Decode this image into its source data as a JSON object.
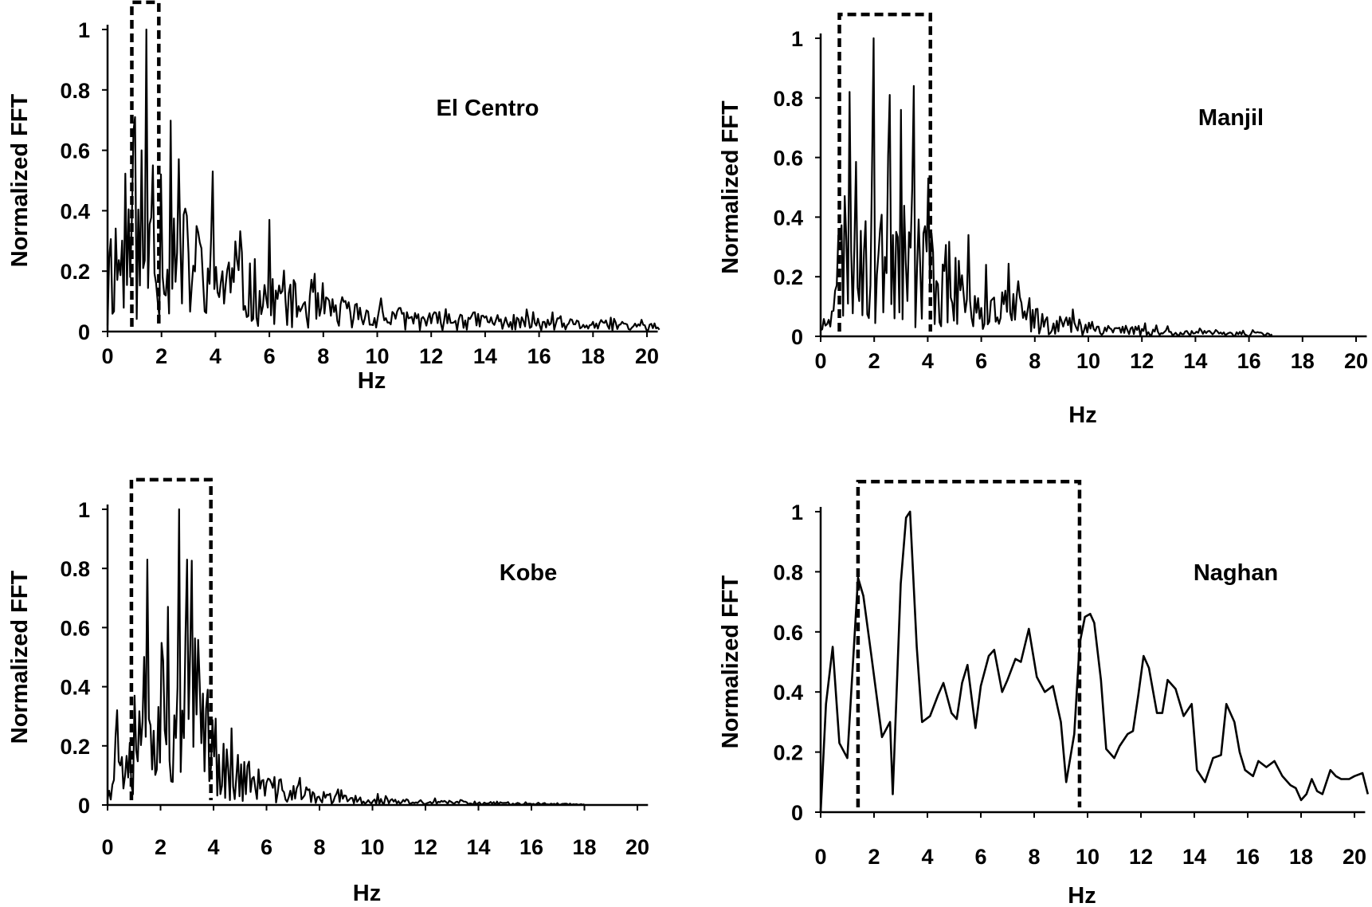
{
  "figure": {
    "panel_count": 4,
    "line_color": "#000000",
    "box_color": "#000000"
  },
  "chart_data": [
    {
      "type": "line",
      "title": "El Centro",
      "xlabel": "Hz",
      "ylabel": "Normalized FFT",
      "xlim": [
        0,
        20
      ],
      "ylim": [
        0,
        1
      ],
      "xticks": [
        "0",
        "2",
        "4",
        "6",
        "8",
        "10",
        "12",
        "14",
        "16",
        "18",
        "20"
      ],
      "yticks": [
        "0",
        "0.2",
        "0.4",
        "0.6",
        "0.8",
        "1"
      ],
      "grid": false,
      "highlight_box": {
        "x_start": 0.9,
        "x_end": 1.9,
        "y_top": 1.09
      },
      "series": [
        {
          "name": "El Centro",
          "x_max": 20.5,
          "seed": 11,
          "peaks": [
            {
              "x": 1.05,
              "y": 0.71
            },
            {
              "x": 1.25,
              "y": 0.6
            },
            {
              "x": 1.45,
              "y": 1.0
            },
            {
              "x": 1.7,
              "y": 0.55
            },
            {
              "x": 2.0,
              "y": 0.52
            },
            {
              "x": 3.9,
              "y": 0.53
            },
            {
              "x": 6.0,
              "y": 0.37
            }
          ],
          "bands": [
            {
              "x": 0,
              "a": 0.31
            },
            {
              "x": 2,
              "a": 0.38
            },
            {
              "x": 4,
              "a": 0.24
            },
            {
              "x": 6,
              "a": 0.16
            },
            {
              "x": 8,
              "a": 0.09
            },
            {
              "x": 10,
              "a": 0.07
            },
            {
              "x": 12,
              "a": 0.05
            },
            {
              "x": 14,
              "a": 0.05
            },
            {
              "x": 16,
              "a": 0.035
            },
            {
              "x": 18,
              "a": 0.03
            },
            {
              "x": 20.5,
              "a": 0.02
            }
          ],
          "step": 0.06
        }
      ]
    },
    {
      "type": "line",
      "title": "Manjil",
      "xlabel": "Hz",
      "ylabel": "Normalized FFT",
      "xlim": [
        0,
        20
      ],
      "ylim": [
        0,
        1
      ],
      "xticks": [
        "0",
        "2",
        "4",
        "6",
        "8",
        "10",
        "12",
        "14",
        "16",
        "18",
        "20"
      ],
      "yticks": [
        "0",
        "0.2",
        "0.4",
        "0.6",
        "0.8",
        "1"
      ],
      "grid": false,
      "highlight_box": {
        "x_start": 0.7,
        "x_end": 4.1,
        "y_top": 1.08
      },
      "series": [
        {
          "name": "Manjil",
          "x_max": 16.9,
          "seed": 23,
          "peaks": [
            {
              "x": 1.1,
              "y": 0.82
            },
            {
              "x": 2.0,
              "y": 1.0
            },
            {
              "x": 2.6,
              "y": 0.81
            },
            {
              "x": 3.0,
              "y": 0.76
            },
            {
              "x": 3.5,
              "y": 0.84
            },
            {
              "x": 4.0,
              "y": 0.53
            },
            {
              "x": 5.5,
              "y": 0.34
            }
          ],
          "bands": [
            {
              "x": 0,
              "a": 0.0
            },
            {
              "x": 0.4,
              "a": 0.2
            },
            {
              "x": 1,
              "a": 0.45
            },
            {
              "x": 3,
              "a": 0.46
            },
            {
              "x": 4.2,
              "a": 0.28
            },
            {
              "x": 6,
              "a": 0.17
            },
            {
              "x": 8,
              "a": 0.08
            },
            {
              "x": 10,
              "a": 0.04
            },
            {
              "x": 12,
              "a": 0.025
            },
            {
              "x": 14,
              "a": 0.015
            },
            {
              "x": 16.9,
              "a": 0.01
            }
          ],
          "step": 0.06
        }
      ]
    },
    {
      "type": "line",
      "title": "Kobe",
      "xlabel": "Hz",
      "ylabel": "Normalized FFT",
      "xlim": [
        0,
        20
      ],
      "ylim": [
        0,
        1
      ],
      "xticks": [
        "0",
        "2",
        "4",
        "6",
        "8",
        "10",
        "12",
        "14",
        "16",
        "18",
        "20"
      ],
      "yticks": [
        "0",
        "0.2",
        "0.4",
        "0.6",
        "0.8",
        "1"
      ],
      "grid": false,
      "highlight_box": {
        "x_start": 0.9,
        "x_end": 3.9,
        "y_top": 1.1
      },
      "series": [
        {
          "name": "Kobe",
          "x_max": 18.0,
          "seed": 37,
          "peaks": [
            {
              "x": 1.5,
              "y": 0.83
            },
            {
              "x": 2.3,
              "y": 0.67
            },
            {
              "x": 2.7,
              "y": 1.0
            },
            {
              "x": 3.0,
              "y": 0.83
            },
            {
              "x": 3.8,
              "y": 0.39
            }
          ],
          "bands": [
            {
              "x": 0,
              "a": 0.1
            },
            {
              "x": 0.8,
              "a": 0.34
            },
            {
              "x": 1.5,
              "a": 0.5
            },
            {
              "x": 3.5,
              "a": 0.44
            },
            {
              "x": 4.2,
              "a": 0.18
            },
            {
              "x": 6,
              "a": 0.08
            },
            {
              "x": 8,
              "a": 0.035
            },
            {
              "x": 10,
              "a": 0.02
            },
            {
              "x": 12,
              "a": 0.012
            },
            {
              "x": 15,
              "a": 0.008
            },
            {
              "x": 18,
              "a": 0.003
            }
          ],
          "step": 0.06
        }
      ]
    },
    {
      "type": "line",
      "title": "Naghan",
      "xlabel": "Hz",
      "ylabel": "Normalized FFT",
      "xlim": [
        0,
        20
      ],
      "ylim": [
        0,
        1
      ],
      "xticks": [
        "0",
        "2",
        "4",
        "6",
        "8",
        "10",
        "12",
        "14",
        "16",
        "18",
        "20"
      ],
      "yticks": [
        "0",
        "0.2",
        "0.4",
        "0.6",
        "0.8",
        "1"
      ],
      "grid": false,
      "highlight_box": {
        "x_start": 1.4,
        "x_end": 9.7,
        "y_top": 1.1
      },
      "series": [
        {
          "name": "Naghan",
          "x": [
            0.0,
            0.2,
            0.45,
            0.7,
            1.0,
            1.4,
            1.6,
            1.9,
            2.3,
            2.6,
            2.7,
            3.0,
            3.2,
            3.35,
            3.6,
            3.8,
            4.1,
            4.4,
            4.6,
            4.9,
            5.1,
            5.3,
            5.5,
            5.8,
            6.0,
            6.3,
            6.5,
            6.8,
            7.0,
            7.3,
            7.5,
            7.8,
            8.1,
            8.4,
            8.7,
            9.0,
            9.2,
            9.5,
            9.7,
            9.9,
            10.1,
            10.25,
            10.5,
            10.7,
            11.0,
            11.2,
            11.5,
            11.7,
            11.9,
            12.1,
            12.3,
            12.6,
            12.8,
            13.0,
            13.3,
            13.6,
            13.9,
            14.1,
            14.4,
            14.7,
            15.0,
            15.2,
            15.5,
            15.7,
            15.9,
            16.2,
            16.4,
            16.7,
            17.0,
            17.3,
            17.6,
            17.8,
            18.0,
            18.2,
            18.4,
            18.6,
            18.8,
            19.1,
            19.3,
            19.5,
            19.8,
            20.0,
            20.3,
            20.5
          ],
          "values": [
            0.0,
            0.36,
            0.55,
            0.23,
            0.18,
            0.78,
            0.72,
            0.52,
            0.25,
            0.3,
            0.06,
            0.76,
            0.98,
            1.0,
            0.55,
            0.3,
            0.32,
            0.39,
            0.43,
            0.33,
            0.31,
            0.43,
            0.49,
            0.28,
            0.42,
            0.52,
            0.54,
            0.4,
            0.44,
            0.51,
            0.5,
            0.61,
            0.45,
            0.4,
            0.42,
            0.3,
            0.1,
            0.26,
            0.56,
            0.65,
            0.66,
            0.63,
            0.44,
            0.21,
            0.18,
            0.22,
            0.26,
            0.27,
            0.39,
            0.52,
            0.48,
            0.33,
            0.33,
            0.44,
            0.41,
            0.32,
            0.36,
            0.14,
            0.1,
            0.18,
            0.19,
            0.36,
            0.3,
            0.2,
            0.14,
            0.12,
            0.17,
            0.15,
            0.17,
            0.12,
            0.09,
            0.08,
            0.04,
            0.06,
            0.11,
            0.07,
            0.06,
            0.14,
            0.12,
            0.11,
            0.11,
            0.12,
            0.13,
            0.06
          ]
        }
      ]
    }
  ]
}
